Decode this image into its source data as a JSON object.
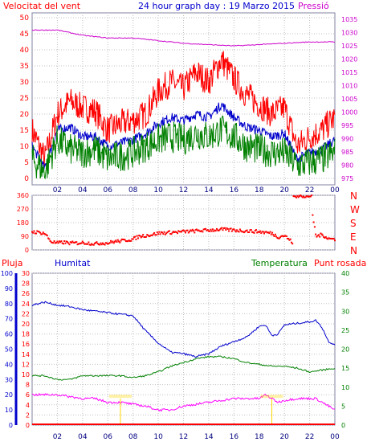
{
  "header": {
    "left_label": "Velocitat del vent",
    "title": "24 hour graph day : 19 Marzo 2015",
    "right_label": "Pressió"
  },
  "colors": {
    "wind_max": "#ff0000",
    "wind_avg": "#0000cc",
    "wind_speed": "#008000",
    "pressure": "#cc00cc",
    "direction": "#ff0000",
    "humidity": "#0000cc",
    "temperature": "#008000",
    "dewpoint": "#ff00ff",
    "rain": "#ff0000",
    "annotation": "#ffd700"
  },
  "chart_data": [
    {
      "type": "line",
      "id": "wind-pressure",
      "x_ticks": [
        "02",
        "04",
        "06",
        "08",
        "10",
        "12",
        "14",
        "16",
        "18",
        "20",
        "22",
        "00"
      ],
      "y_left_ticks": [
        0,
        5,
        10,
        15,
        20,
        25,
        30,
        35,
        40,
        45,
        50
      ],
      "y_right_ticks": [
        975,
        980,
        985,
        990,
        995,
        1000,
        1005,
        1010,
        1015,
        1020,
        1025,
        1030,
        1035
      ],
      "ylim_left": [
        0,
        50
      ],
      "ylim_right": [
        972.5,
        1037.5
      ],
      "grid": true,
      "series": [
        {
          "key": "gust",
          "hours": [
            0,
            1,
            2,
            3,
            4,
            5,
            6,
            7,
            8,
            9,
            10,
            11,
            12,
            13,
            14,
            15,
            16,
            17,
            18,
            19,
            20,
            21,
            22,
            23,
            24
          ],
          "values": [
            15,
            6,
            20,
            24,
            22,
            21,
            15,
            17,
            18,
            20,
            27,
            30,
            28,
            33,
            30,
            37,
            31,
            26,
            23,
            20,
            22,
            10,
            13,
            15,
            19
          ]
        },
        {
          "key": "avg",
          "hours": [
            0,
            1,
            2,
            3,
            4,
            5,
            6,
            7,
            8,
            9,
            10,
            11,
            12,
            13,
            14,
            15,
            16,
            17,
            18,
            19,
            20,
            21,
            22,
            23,
            24
          ],
          "values": [
            10,
            3,
            15,
            16,
            13,
            13,
            10,
            11,
            12,
            14,
            17,
            19,
            18,
            20,
            19,
            23,
            19,
            16,
            15,
            13,
            14,
            6,
            8,
            9,
            12
          ]
        },
        {
          "key": "speed",
          "hours": [
            0,
            1,
            2,
            3,
            4,
            5,
            6,
            7,
            8,
            9,
            10,
            11,
            12,
            13,
            14,
            15,
            16,
            17,
            18,
            19,
            20,
            21,
            22,
            23,
            24
          ],
          "values": [
            6,
            2,
            12,
            9,
            8,
            9,
            6,
            7,
            8,
            10,
            12,
            13,
            12,
            14,
            13,
            15,
            13,
            10,
            9,
            8,
            8,
            4,
            5,
            6,
            8
          ]
        },
        {
          "key": "pressure",
          "hours": [
            0,
            2,
            4,
            6,
            8,
            10,
            12,
            14,
            16,
            18,
            20,
            22,
            24
          ],
          "values": [
            1031,
            1031,
            1029,
            1028,
            1028,
            1027,
            1026,
            1025.5,
            1025,
            1025.5,
            1026,
            1026.5,
            1026.5
          ]
        }
      ]
    },
    {
      "type": "scatter",
      "id": "direction",
      "y_ticks": [
        0,
        90,
        180,
        270,
        360
      ],
      "y_right_labels": [
        "N",
        "E",
        "S",
        "W",
        "N"
      ],
      "ylim": [
        0,
        360
      ],
      "grid": true,
      "series": [
        {
          "key": "direction",
          "hours": [
            0,
            0.5,
            1,
            1.5,
            2,
            2.5,
            3,
            3.5,
            4,
            4.5,
            5,
            5.5,
            6,
            6.5,
            7,
            7.5,
            8,
            8.5,
            9,
            9.5,
            10,
            11,
            12,
            13,
            14,
            15,
            16,
            17,
            18,
            18.5,
            19,
            19.5,
            20,
            20.5,
            21,
            21.5,
            22,
            22.5,
            23,
            23.5,
            24
          ],
          "values": [
            120,
            115,
            110,
            55,
            45,
            50,
            45,
            45,
            48,
            45,
            40,
            45,
            45,
            55,
            58,
            65,
            70,
            90,
            95,
            100,
            110,
            115,
            120,
            125,
            130,
            135,
            130,
            125,
            120,
            115,
            110,
            85,
            95,
            60,
            20,
            355,
            360,
            90,
            100,
            75,
            70
          ]
        }
      ]
    },
    {
      "type": "line",
      "id": "humidity-temperature",
      "x_ticks": [
        "02",
        "04",
        "06",
        "08",
        "10",
        "12",
        "14",
        "16",
        "18",
        "20",
        "22",
        "00"
      ],
      "humidity_ticks": [
        0,
        10,
        20,
        30,
        40,
        50,
        60,
        70,
        80,
        90,
        100
      ],
      "rain_ticks": [
        0,
        2,
        4,
        6,
        8,
        10,
        12,
        14,
        16,
        18,
        20,
        22,
        24,
        26,
        28,
        30
      ],
      "temp_ticks": [
        0,
        5,
        10,
        15,
        20,
        25,
        30,
        35,
        40
      ],
      "ylim_humidity": [
        0,
        100
      ],
      "ylim_rain": [
        0,
        30
      ],
      "ylim_temp": [
        0,
        40
      ],
      "grid": true,
      "labels": {
        "rain": "Pluja",
        "humidity": "Humitat",
        "temperature": "Temperatura",
        "dewpoint": "Punt rosada"
      },
      "series": [
        {
          "key": "humidity",
          "hours": [
            0,
            0.5,
            1,
            1.5,
            2,
            3,
            4,
            5,
            6,
            7,
            8,
            9,
            10,
            11,
            12,
            13,
            14,
            15,
            16,
            17,
            18,
            18.5,
            19,
            19.5,
            20,
            21,
            22,
            22.5,
            23,
            23.5,
            24
          ],
          "values": [
            79,
            80,
            81,
            80,
            79,
            78,
            76,
            75,
            74,
            73,
            72,
            62,
            54,
            48,
            47,
            45,
            47,
            52,
            55,
            58,
            65,
            66,
            59,
            60,
            66,
            67,
            68,
            69,
            64,
            55,
            53
          ]
        },
        {
          "key": "temperature",
          "hours": [
            0,
            1,
            2,
            3,
            4,
            5,
            6,
            7,
            8,
            9,
            10,
            11,
            12,
            13,
            14,
            15,
            16,
            17,
            18,
            19,
            20,
            21,
            22,
            23,
            24
          ],
          "values": [
            13,
            13,
            12,
            12,
            13,
            13,
            13,
            13,
            12.5,
            13,
            14,
            15.5,
            16.5,
            17.5,
            18,
            18,
            17.5,
            16.5,
            16,
            15.5,
            15.5,
            15,
            14,
            14.5,
            15
          ]
        },
        {
          "key": "dewpoint",
          "hours": [
            0,
            1,
            2,
            3,
            4,
            5,
            6,
            7,
            8,
            9,
            10,
            11,
            12,
            13,
            14,
            15,
            16,
            17,
            18,
            18.5,
            19,
            19.5,
            20,
            21,
            22,
            22.5,
            23,
            23.5,
            24
          ],
          "values": [
            8,
            8,
            8,
            7.5,
            7,
            7,
            6,
            6,
            5.5,
            5,
            4,
            4,
            5,
            5.5,
            6,
            6.5,
            7,
            7,
            7,
            8,
            7,
            6,
            6.5,
            7,
            7,
            7,
            6,
            5,
            4
          ]
        },
        {
          "key": "rain",
          "hours": [
            0,
            24
          ],
          "values": [
            0,
            0
          ]
        }
      ]
    }
  ]
}
